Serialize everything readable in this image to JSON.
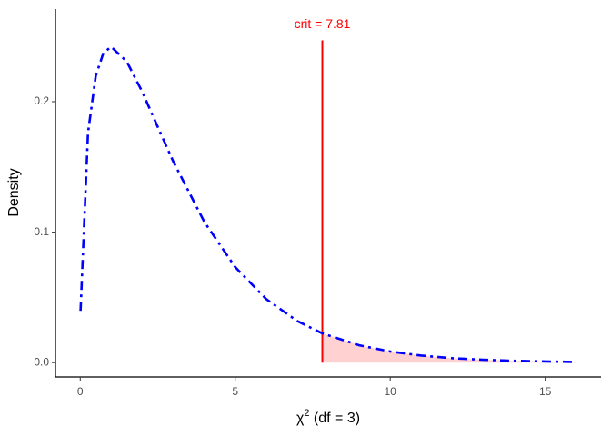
{
  "chart_data": {
    "type": "line",
    "x_label": {
      "symbol": "χ",
      "superscript": "2",
      "text": " (df = 3)"
    },
    "y_label": "Density",
    "x": [
      0.01,
      0.25,
      0.5,
      0.75,
      1,
      1.5,
      2,
      2.5,
      3,
      4,
      5,
      6,
      7,
      7.81,
      9,
      10,
      11,
      12,
      13,
      14,
      15,
      16
    ],
    "series": [
      {
        "color": "#0000ff",
        "values": [
          0.0397,
          0.176,
          0.2197,
          0.2375,
          0.242,
          0.2308,
          0.2076,
          0.1807,
          0.1542,
          0.108,
          0.0732,
          0.0487,
          0.0319,
          0.0224,
          0.0133,
          0.0085,
          0.0054,
          0.0034,
          0.0022,
          0.0014,
          0.0009,
          0.0005
        ]
      }
    ],
    "shade_color": "#ffd1d1",
    "crit_line": {
      "x": 7.81,
      "ymin": 0,
      "ymax": 0.247,
      "color": "#ff0000"
    },
    "annotation": {
      "text": "crit = 7.81",
      "x": 7.81,
      "y": 0.259,
      "color": "#ff0000"
    },
    "xlim": [
      -0.8,
      16.8
    ],
    "ylim": [
      -0.011,
      0.271
    ],
    "xticks": [
      0,
      5,
      10,
      15
    ],
    "yticks": [
      {
        "value": 0,
        "label": "0.0"
      },
      {
        "value": 0.1,
        "label": "0.1"
      },
      {
        "value": 0.2,
        "label": "0.2"
      }
    ],
    "grid": false
  }
}
